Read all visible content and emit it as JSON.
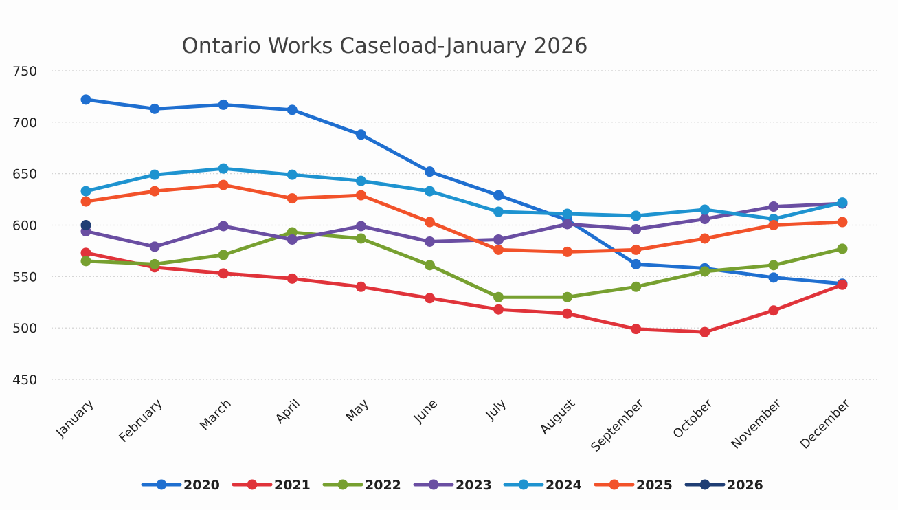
{
  "chart_data": {
    "type": "line",
    "title": "Ontario Works Caseload-January 2026",
    "xlabel": "",
    "ylabel": "",
    "ylim": [
      450,
      750
    ],
    "y_ticks": [
      750,
      700,
      650,
      600,
      550,
      500,
      450
    ],
    "grid": true,
    "legend_position": "bottom",
    "categories": [
      "January",
      "February",
      "March",
      "April",
      "May",
      "June",
      "July",
      "August",
      "September",
      "October",
      "November",
      "December"
    ],
    "series": [
      {
        "name": "2020",
        "color": "#1f6fd0",
        "values": [
          722,
          713,
          717,
          712,
          688,
          652,
          629,
          605,
          562,
          558,
          549,
          543
        ]
      },
      {
        "name": "2021",
        "color": "#e0333a",
        "values": [
          573,
          559,
          553,
          548,
          540,
          529,
          518,
          514,
          499,
          496,
          517,
          542
        ]
      },
      {
        "name": "2022",
        "color": "#77a030",
        "values": [
          565,
          562,
          571,
          593,
          587,
          561,
          530,
          530,
          540,
          555,
          561,
          577
        ]
      },
      {
        "name": "2023",
        "color": "#6a4ea2",
        "values": [
          594,
          579,
          599,
          586,
          599,
          584,
          586,
          601,
          596,
          606,
          618,
          621
        ]
      },
      {
        "name": "2024",
        "color": "#1e93d0",
        "values": [
          633,
          649,
          655,
          649,
          643,
          633,
          613,
          611,
          609,
          615,
          606,
          622
        ]
      },
      {
        "name": "2025",
        "color": "#f2522a",
        "values": [
          623,
          633,
          639,
          626,
          629,
          603,
          576,
          574,
          576,
          587,
          600,
          603
        ]
      },
      {
        "name": "2026",
        "color": "#1f3e74",
        "values": [
          600,
          null,
          null,
          null,
          null,
          null,
          null,
          null,
          null,
          null,
          null,
          null
        ]
      }
    ]
  }
}
